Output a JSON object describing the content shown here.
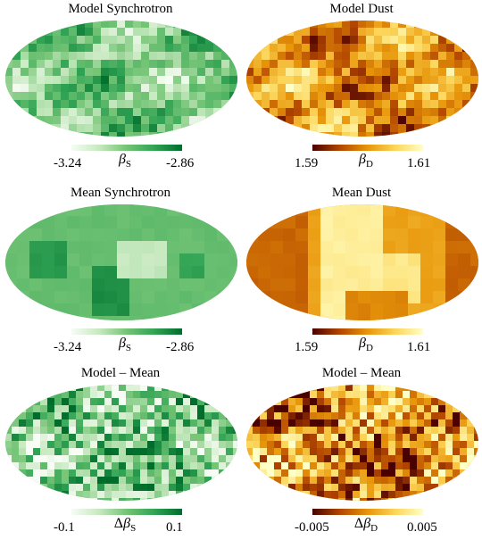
{
  "panels": [
    {
      "id": "model-synchrotron",
      "title": "Model Synchrotron",
      "colormap": "greens",
      "pattern": "fine",
      "seed": 3,
      "colorbar": {
        "min": "-3.24",
        "max": "-2.86",
        "symbol": "β",
        "sub": "S",
        "delta": ""
      }
    },
    {
      "id": "model-dust",
      "title": "Model Dust",
      "colormap": "afmhot",
      "pattern": "fine",
      "seed": 11,
      "colorbar": {
        "min": "1.59",
        "max": "1.61",
        "symbol": "β",
        "sub": "D",
        "delta": ""
      }
    },
    {
      "id": "mean-synchrotron",
      "title": "Mean Synchrotron",
      "colormap": "greens",
      "pattern": "coarse",
      "seed": 5,
      "colorbar": {
        "min": "-3.24",
        "max": "-2.86",
        "symbol": "β",
        "sub": "S",
        "delta": ""
      }
    },
    {
      "id": "mean-dust",
      "title": "Mean Dust",
      "colormap": "afmhot",
      "pattern": "coarse",
      "seed": 7,
      "colorbar": {
        "min": "1.59",
        "max": "1.61",
        "symbol": "β",
        "sub": "D",
        "delta": ""
      }
    },
    {
      "id": "model-minus-mean-synchrotron",
      "title": "Model – Mean",
      "colormap": "greens",
      "pattern": "noise",
      "seed": 17,
      "colorbar": {
        "min": "-0.1",
        "max": "0.1",
        "symbol": "β",
        "sub": "S",
        "delta": "Δ"
      }
    },
    {
      "id": "model-minus-mean-dust",
      "title": "Model – Mean",
      "colormap": "afmhot",
      "pattern": "noise",
      "seed": 23,
      "colorbar": {
        "min": "-0.005",
        "max": "0.005",
        "symbol": "β",
        "sub": "D",
        "delta": "Δ"
      }
    }
  ],
  "colormaps": {
    "greens": [
      "#f7fcf5",
      "#c7e9c0",
      "#74c476",
      "#31a354",
      "#006d2c"
    ],
    "afmhot": [
      "#4a0000",
      "#b34700",
      "#e8960a",
      "#fcd65a",
      "#ffffc8"
    ]
  }
}
